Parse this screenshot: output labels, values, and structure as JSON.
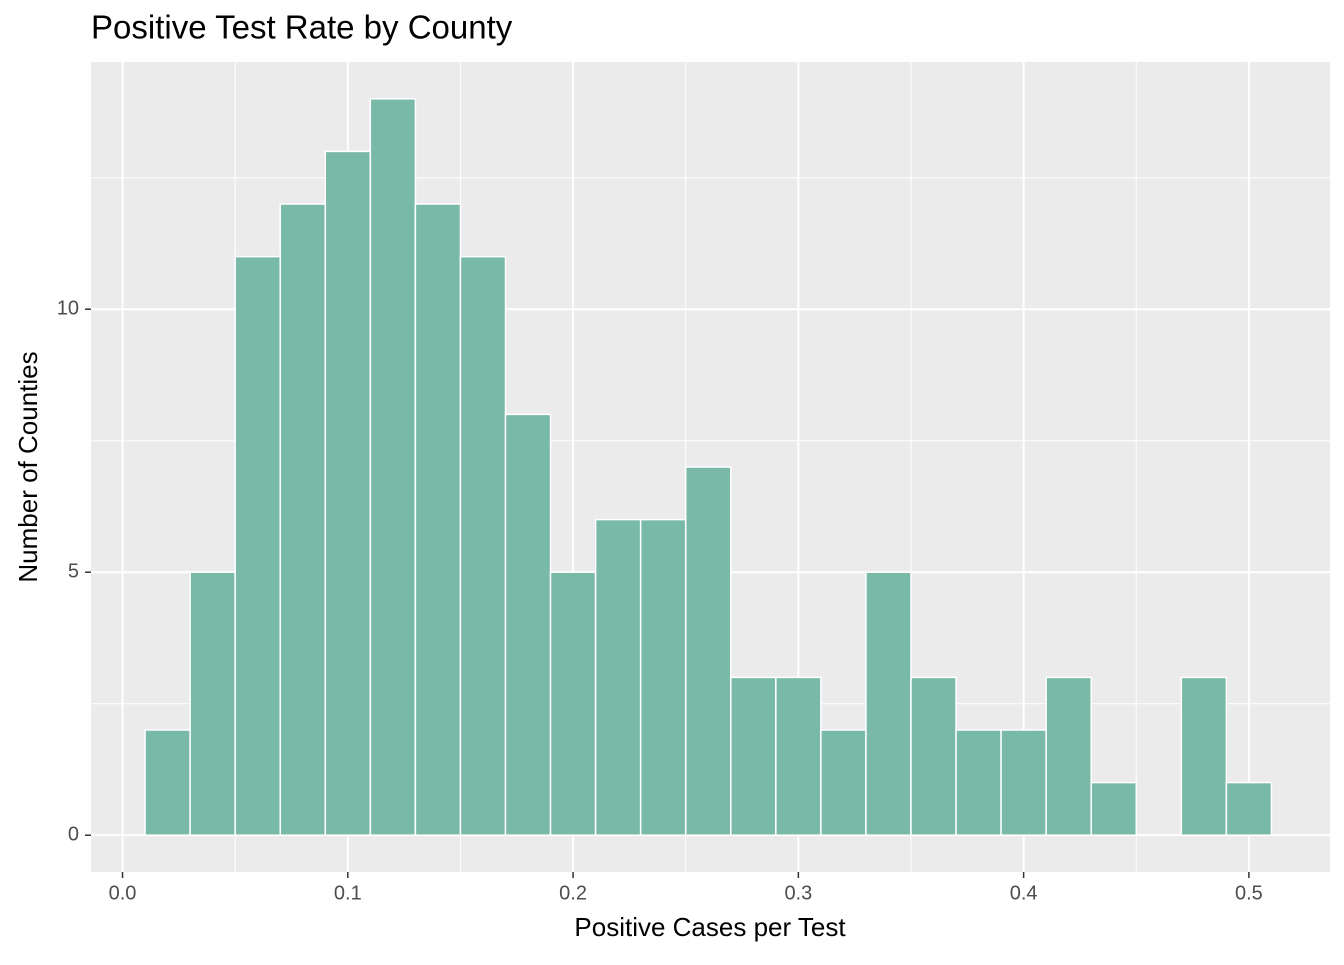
{
  "chart_data": {
    "type": "histogram",
    "title": "Positive Test Rate by County",
    "x_label": "Positive Cases per Test",
    "y_label": "Number of Counties",
    "bins": [
      0.01,
      0.03,
      0.05,
      0.07,
      0.09,
      0.11,
      0.13,
      0.15,
      0.17,
      0.19,
      0.21,
      0.23,
      0.25,
      0.27,
      0.29,
      0.31,
      0.33,
      0.35,
      0.37,
      0.39,
      0.41,
      0.43,
      0.45,
      0.47,
      0.49,
      0.51
    ],
    "values": [
      2,
      5,
      11,
      12,
      13,
      14,
      12,
      11,
      8,
      5,
      6,
      6,
      7,
      3,
      3,
      2,
      5,
      3,
      2,
      2,
      3,
      1,
      0,
      3,
      1
    ],
    "color": "#79b9a8",
    "xlim": [
      -0.014,
      0.536
    ],
    "ylim": [
      -0.7,
      14.7
    ],
    "xticks": [
      {
        "value": 0,
        "label": "0.0"
      },
      0.1,
      0.2,
      0.3,
      0.4,
      0.5
    ],
    "yticks": [
      0,
      5,
      10
    ],
    "grid": true
  }
}
